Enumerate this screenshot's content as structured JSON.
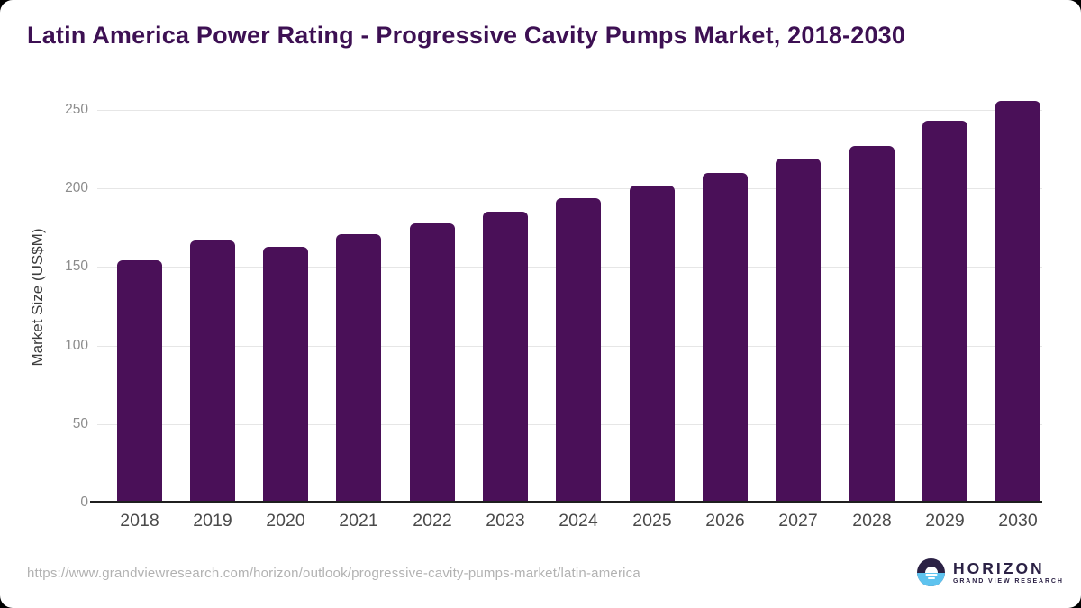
{
  "page": {
    "title": "Latin America Power Rating - Progressive Cavity Pumps Market, 2018-2030",
    "source_url": "https://www.grandviewresearch.com/horizon/outlook/progressive-cavity-pumps-market/latin-america"
  },
  "branding": {
    "logo_name": "HORIZON",
    "logo_subtitle": "GRAND VIEW RESEARCH"
  },
  "colors": {
    "title": "#3d1053",
    "bar": "#4a1058",
    "gridline": "#e6e6e6",
    "axis_line": "#1f1f1f",
    "ytick": "#8c8c8c",
    "xtick": "#4a4a4a",
    "yaxis_title": "#3c3c3c",
    "url": "#b2b2b2",
    "logo_purple": "#2b2145",
    "logo_blue": "#5ec3ef"
  },
  "chart_data": {
    "type": "bar",
    "title": "Latin America Power Rating - Progressive Cavity Pumps Market, 2018-2030",
    "xlabel": "",
    "ylabel": "Market Size (US$M)",
    "categories": [
      "2018",
      "2019",
      "2020",
      "2021",
      "2022",
      "2023",
      "2024",
      "2025",
      "2026",
      "2027",
      "2028",
      "2029",
      "2030"
    ],
    "values": [
      154,
      167,
      163,
      171,
      178,
      185,
      194,
      202,
      210,
      219,
      227,
      243,
      256
    ],
    "yticks": [
      0,
      50,
      100,
      150,
      200,
      250
    ],
    "ylim": [
      0,
      260
    ],
    "grid": "horizontal",
    "legend": "none",
    "bar_color": "#4a1058"
  }
}
